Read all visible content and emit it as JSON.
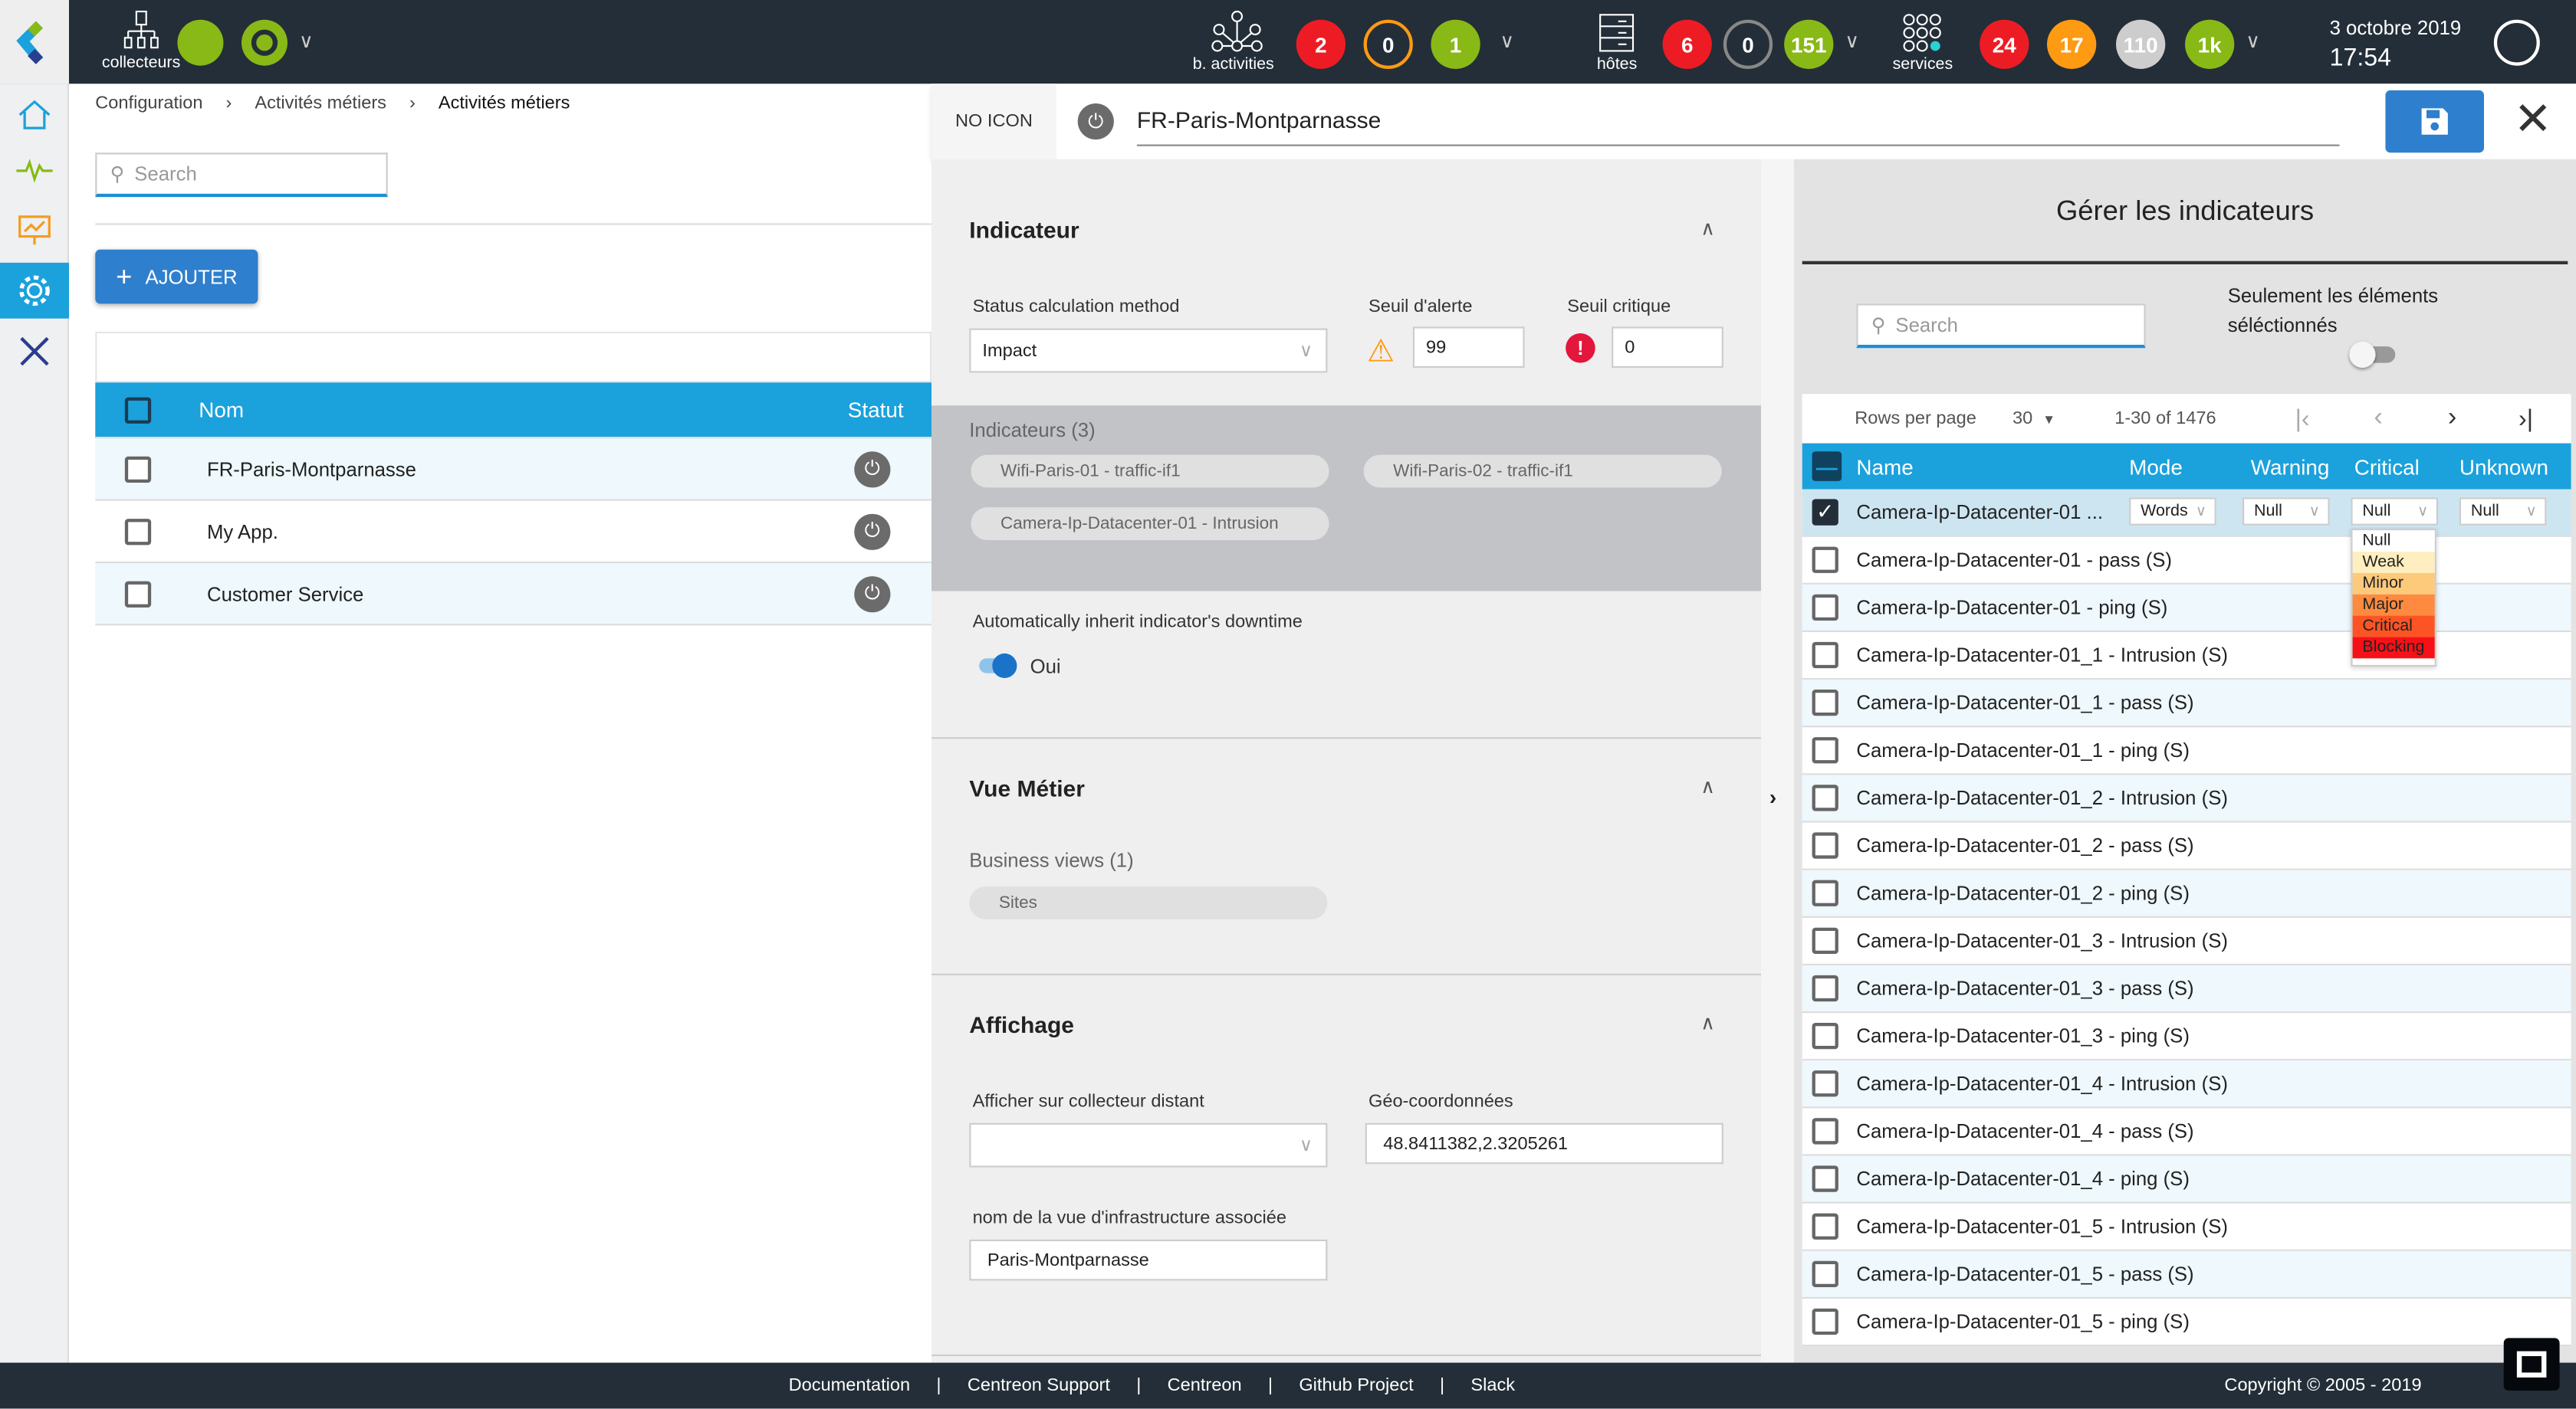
{
  "topbar": {
    "pollers_label": "collecteurs",
    "ba": {
      "label": "b. activities",
      "counts": [
        "2",
        "0",
        "1"
      ]
    },
    "hosts": {
      "label": "hôtes",
      "counts": [
        "6",
        "0",
        "151"
      ]
    },
    "services": {
      "label": "services",
      "counts": [
        "24",
        "17",
        "110",
        "1k"
      ]
    },
    "date": "3 octobre 2019",
    "time": "17:54",
    "colors": {
      "critical": "#ed1c24",
      "warning": "#ff9a13",
      "ok": "#88b917",
      "unknown": "#cdcdcd",
      "pending": "#2ad1d4"
    }
  },
  "sidebar": {
    "items": [
      "home",
      "monitoring",
      "reporting",
      "configuration",
      "administration"
    ],
    "active": "configuration",
    "collapse": "»"
  },
  "breadcrumb": [
    "Configuration",
    "Activités métiers",
    "Activités métiers"
  ],
  "left": {
    "search_placeholder": "Search",
    "add_label": "AJOUTER",
    "columns": [
      "Nom",
      "Statut"
    ],
    "rows": [
      "FR-Paris-Montparnasse",
      "My App.",
      "Customer Service"
    ]
  },
  "panel": {
    "icon_label": "NO ICON",
    "title": "FR-Paris-Montparnasse",
    "indicator": {
      "title": "Indicateur",
      "method_label": "Status calculation method",
      "method_value": "Impact",
      "warn_label": "Seuil d'alerte",
      "warn_value": "99",
      "crit_label": "Seuil critique",
      "crit_value": "0",
      "list_label": "Indicateurs (3)",
      "chips": [
        "Wifi-Paris-01 - traffic-if1",
        "Wifi-Paris-02 - traffic-if1",
        "Camera-Ip-Datacenter-01 - Intrusion"
      ],
      "inherit_label": "Automatically inherit indicator's downtime",
      "inherit_value": "Oui",
      "inherit_on": true
    },
    "business": {
      "title": "Vue Métier",
      "list_label": "Business views (1)",
      "chips": [
        "Sites"
      ]
    },
    "display": {
      "title": "Affichage",
      "remote_label": "Afficher sur collecteur distant",
      "remote_value": "",
      "geo_label": "Géo-coordonnées",
      "geo_value": "48.8411382,2.3205261",
      "infra_label": "nom de la vue d'infrastructure associée",
      "infra_value": "Paris-Montparnasse"
    }
  },
  "manage": {
    "title": "Gérer les indicateurs",
    "search_placeholder": "Search",
    "only_selected_label": "Seulement les éléments séléctionnés",
    "only_selected_on": false,
    "rows_per_page_label": "Rows per page",
    "rows_per_page": "30",
    "range": "1-30 of 1476",
    "columns": [
      "Name",
      "Mode",
      "Warning",
      "Critical",
      "Unknown"
    ],
    "first_row": {
      "name": "Camera-Ip-Datacenter-01 ...",
      "mode": "Words",
      "warning": "Null",
      "critical": "Null",
      "unknown": "Null",
      "checked": true
    },
    "critical_options": [
      {
        "label": "Null",
        "color": "#ffffff"
      },
      {
        "label": "Weak",
        "color": "#ffefc0"
      },
      {
        "label": "Minor",
        "color": "#fdca7b"
      },
      {
        "label": "Major",
        "color": "#fd8a3e"
      },
      {
        "label": "Critical",
        "color": "#fd5424"
      },
      {
        "label": "Blocking",
        "color": "#f81018"
      }
    ],
    "rows": [
      "Camera-Ip-Datacenter-01 - pass (S)",
      "Camera-Ip-Datacenter-01 - ping (S)",
      "Camera-Ip-Datacenter-01_1 - Intrusion (S)",
      "Camera-Ip-Datacenter-01_1 - pass (S)",
      "Camera-Ip-Datacenter-01_1 - ping (S)",
      "Camera-Ip-Datacenter-01_2 - Intrusion (S)",
      "Camera-Ip-Datacenter-01_2 - pass (S)",
      "Camera-Ip-Datacenter-01_2 - ping (S)",
      "Camera-Ip-Datacenter-01_3 - Intrusion (S)",
      "Camera-Ip-Datacenter-01_3 - pass (S)",
      "Camera-Ip-Datacenter-01_3 - ping (S)",
      "Camera-Ip-Datacenter-01_4 - Intrusion (S)",
      "Camera-Ip-Datacenter-01_4 - pass (S)",
      "Camera-Ip-Datacenter-01_4 - ping (S)",
      "Camera-Ip-Datacenter-01_5 - Intrusion (S)",
      "Camera-Ip-Datacenter-01_5 - pass (S)",
      "Camera-Ip-Datacenter-01_5 - ping (S)"
    ]
  },
  "footer": {
    "links": [
      "Documentation",
      "Centreon Support",
      "Centreon",
      "Github Project",
      "Slack"
    ],
    "copyright": "Copyright © 2005 - 2019"
  }
}
